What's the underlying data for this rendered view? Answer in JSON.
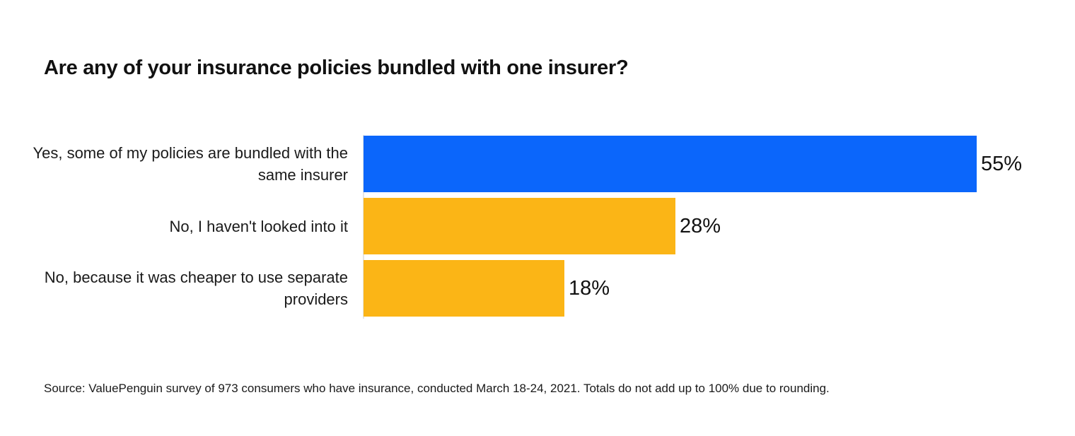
{
  "chart_data": {
    "type": "bar",
    "orientation": "horizontal",
    "title": "Are any of your insurance policies bundled with one insurer?",
    "categories": [
      "Yes, some of my policies are bundled with the same insurer",
      "No, I haven't looked into it",
      "No, because it was cheaper to use separate providers"
    ],
    "values": [
      55,
      28,
      18
    ],
    "value_labels": [
      "55%",
      "28%",
      "18%"
    ],
    "bar_colors": [
      "#0b66fb",
      "#fbb516",
      "#fbb516"
    ],
    "xlim": [
      0,
      55
    ],
    "grid": false,
    "legend": "none",
    "source": "Source: ValuePenguin survey of 973 consumers who have insurance, conducted March 18-24, 2021. Totals do not add up to 100% due to rounding."
  }
}
